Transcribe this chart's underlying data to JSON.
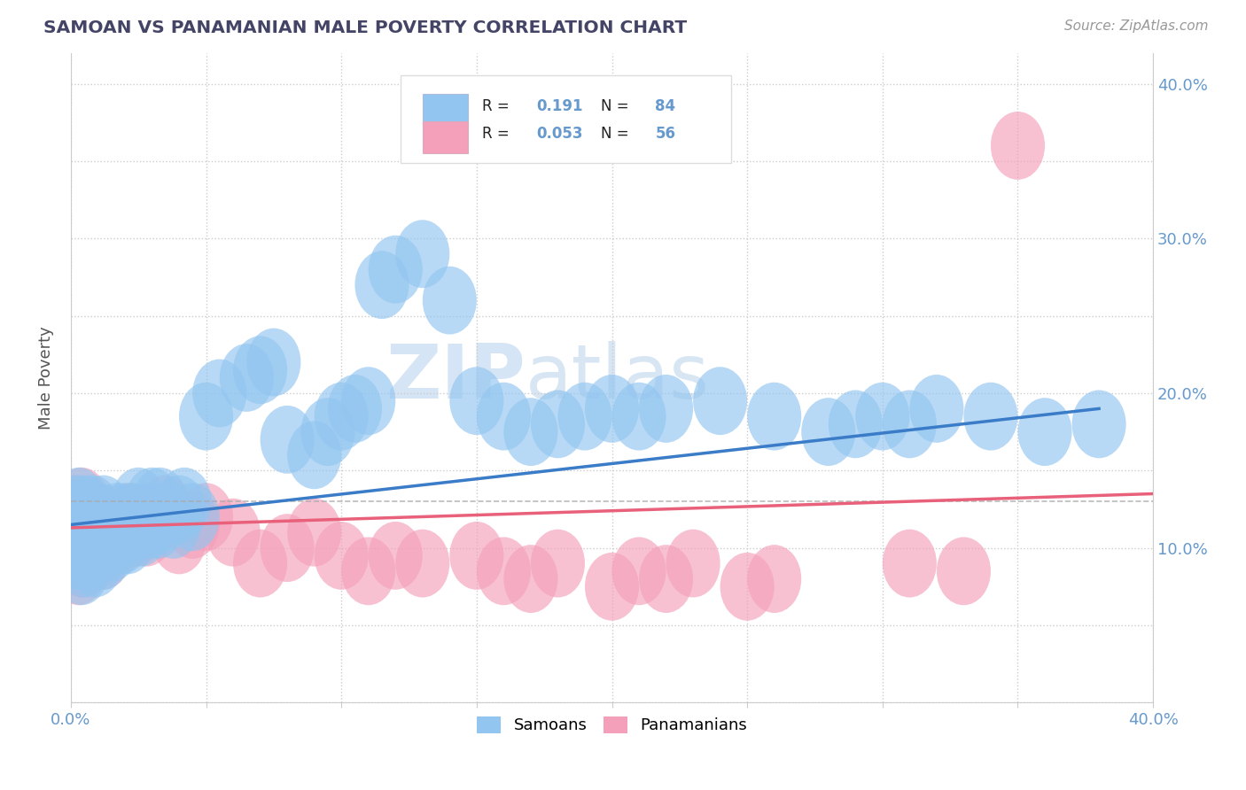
{
  "title": "SAMOAN VS PANAMANIAN MALE POVERTY CORRELATION CHART",
  "source": "Source: ZipAtlas.com",
  "ylabel": "Male Poverty",
  "xlim": [
    0.0,
    0.4
  ],
  "ylim": [
    0.0,
    0.42
  ],
  "samoan_color": "#92C5F0",
  "panamanian_color": "#F4A0BA",
  "samoan_line_color": "#3A7CC8",
  "panamanian_line_color": "#E8607A",
  "samoan_R": 0.191,
  "samoan_N": 84,
  "panamanian_R": 0.053,
  "panamanian_N": 56,
  "title_color": "#444466",
  "axis_color": "#6699CC",
  "dashed_line_y": 0.13,
  "sam_line_x0": 0.0,
  "sam_line_y0": 0.115,
  "sam_line_x1": 0.38,
  "sam_line_y1": 0.19,
  "pan_line_x0": 0.0,
  "pan_line_y0": 0.113,
  "pan_line_x1": 0.4,
  "pan_line_y1": 0.135,
  "samoan_x": [
    0.001,
    0.001,
    0.002,
    0.002,
    0.003,
    0.003,
    0.003,
    0.004,
    0.004,
    0.005,
    0.005,
    0.005,
    0.006,
    0.006,
    0.007,
    0.007,
    0.008,
    0.008,
    0.009,
    0.009,
    0.01,
    0.01,
    0.011,
    0.012,
    0.012,
    0.013,
    0.014,
    0.015,
    0.016,
    0.017,
    0.018,
    0.019,
    0.02,
    0.021,
    0.022,
    0.023,
    0.024,
    0.025,
    0.026,
    0.027,
    0.028,
    0.029,
    0.03,
    0.031,
    0.032,
    0.033,
    0.035,
    0.038,
    0.04,
    0.042,
    0.045,
    0.05,
    0.055,
    0.065,
    0.07,
    0.075,
    0.08,
    0.09,
    0.095,
    0.1,
    0.105,
    0.11,
    0.115,
    0.12,
    0.13,
    0.14,
    0.15,
    0.16,
    0.17,
    0.18,
    0.19,
    0.2,
    0.21,
    0.22,
    0.24,
    0.26,
    0.28,
    0.29,
    0.3,
    0.31,
    0.32,
    0.34,
    0.36,
    0.38
  ],
  "samoan_y": [
    0.115,
    0.12,
    0.11,
    0.125,
    0.095,
    0.105,
    0.13,
    0.085,
    0.115,
    0.09,
    0.11,
    0.125,
    0.1,
    0.12,
    0.095,
    0.115,
    0.1,
    0.125,
    0.09,
    0.115,
    0.1,
    0.12,
    0.115,
    0.095,
    0.125,
    0.11,
    0.115,
    0.1,
    0.11,
    0.12,
    0.115,
    0.105,
    0.12,
    0.105,
    0.115,
    0.12,
    0.115,
    0.13,
    0.11,
    0.115,
    0.12,
    0.115,
    0.13,
    0.12,
    0.115,
    0.13,
    0.12,
    0.115,
    0.125,
    0.13,
    0.12,
    0.185,
    0.2,
    0.21,
    0.215,
    0.22,
    0.17,
    0.16,
    0.175,
    0.185,
    0.19,
    0.195,
    0.27,
    0.28,
    0.29,
    0.26,
    0.195,
    0.185,
    0.175,
    0.18,
    0.185,
    0.19,
    0.185,
    0.19,
    0.195,
    0.185,
    0.175,
    0.18,
    0.185,
    0.18,
    0.19,
    0.185,
    0.175,
    0.18
  ],
  "panamanian_x": [
    0.001,
    0.001,
    0.002,
    0.002,
    0.003,
    0.003,
    0.004,
    0.004,
    0.005,
    0.005,
    0.006,
    0.006,
    0.007,
    0.008,
    0.009,
    0.01,
    0.01,
    0.011,
    0.012,
    0.013,
    0.014,
    0.015,
    0.016,
    0.018,
    0.019,
    0.02,
    0.022,
    0.024,
    0.026,
    0.028,
    0.03,
    0.035,
    0.04,
    0.045,
    0.05,
    0.06,
    0.07,
    0.08,
    0.09,
    0.1,
    0.11,
    0.12,
    0.13,
    0.15,
    0.16,
    0.17,
    0.18,
    0.2,
    0.21,
    0.22,
    0.23,
    0.25,
    0.26,
    0.31,
    0.33,
    0.35
  ],
  "panamanian_y": [
    0.11,
    0.125,
    0.095,
    0.12,
    0.085,
    0.115,
    0.09,
    0.13,
    0.1,
    0.12,
    0.095,
    0.115,
    0.105,
    0.12,
    0.095,
    0.1,
    0.12,
    0.115,
    0.095,
    0.105,
    0.115,
    0.105,
    0.115,
    0.105,
    0.115,
    0.11,
    0.12,
    0.11,
    0.115,
    0.11,
    0.12,
    0.125,
    0.105,
    0.115,
    0.12,
    0.11,
    0.09,
    0.1,
    0.11,
    0.095,
    0.085,
    0.095,
    0.09,
    0.095,
    0.085,
    0.08,
    0.09,
    0.075,
    0.085,
    0.08,
    0.09,
    0.075,
    0.08,
    0.09,
    0.085,
    0.36
  ]
}
